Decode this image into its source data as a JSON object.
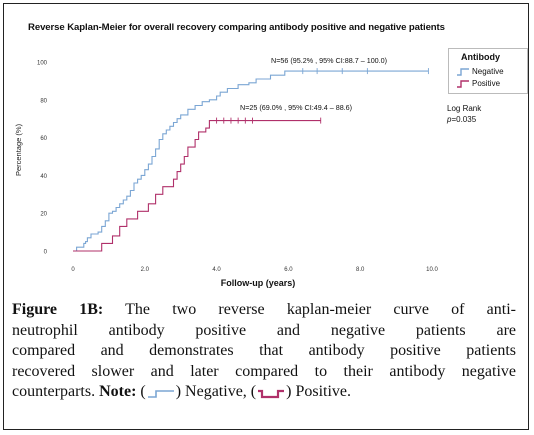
{
  "chart_data": {
    "type": "line",
    "title": "Reverse Kaplan-Meier for overall recovery comparing antibody positive and negative patients",
    "xlabel": "Follow-up (years)",
    "ylabel": "Percentage (%)",
    "xlim": [
      0,
      10
    ],
    "ylim": [
      0,
      100
    ],
    "x_ticks": [
      "0",
      "2.0",
      "4.0",
      "6.0",
      "8.0",
      "10.0"
    ],
    "y_ticks": [
      "0",
      "20",
      "40",
      "60",
      "80",
      "100"
    ],
    "grid": false,
    "legend": {
      "title": "Antibody",
      "placement": "right",
      "entries": [
        "Negative",
        "Positive"
      ]
    },
    "series": [
      {
        "name": "Negative",
        "color": "#7ba6d4",
        "annotation": "N=56 (95.2% , 95% CI:88.7 – 100.0)",
        "steps": [
          [
            0,
            0
          ],
          [
            0.1,
            2
          ],
          [
            0.3,
            4
          ],
          [
            0.35,
            5
          ],
          [
            0.4,
            7
          ],
          [
            0.5,
            9
          ],
          [
            0.7,
            10
          ],
          [
            0.8,
            13
          ],
          [
            0.9,
            16
          ],
          [
            1.0,
            20
          ],
          [
            1.1,
            21
          ],
          [
            1.2,
            23
          ],
          [
            1.3,
            25
          ],
          [
            1.4,
            27
          ],
          [
            1.5,
            29
          ],
          [
            1.6,
            32
          ],
          [
            1.7,
            36
          ],
          [
            1.8,
            38
          ],
          [
            1.9,
            40
          ],
          [
            2.0,
            43
          ],
          [
            2.1,
            46
          ],
          [
            2.2,
            50
          ],
          [
            2.3,
            54
          ],
          [
            2.4,
            59
          ],
          [
            2.5,
            62
          ],
          [
            2.6,
            64
          ],
          [
            2.7,
            66
          ],
          [
            2.8,
            68
          ],
          [
            2.9,
            70
          ],
          [
            3.0,
            72
          ],
          [
            3.2,
            75
          ],
          [
            3.4,
            77
          ],
          [
            3.6,
            79
          ],
          [
            3.8,
            80
          ],
          [
            4.0,
            82
          ],
          [
            4.1,
            84
          ],
          [
            4.3,
            86
          ],
          [
            4.6,
            88
          ],
          [
            4.9,
            89
          ],
          [
            5.1,
            91
          ],
          [
            5.5,
            93
          ],
          [
            5.9,
            95.2
          ],
          [
            9.9,
            95.2
          ]
        ],
        "censor_x": [
          6.4,
          6.8,
          7.5,
          8.2,
          9.9
        ]
      },
      {
        "name": "Positive",
        "color": "#b0306a",
        "annotation": "N=25 (69.0% , 95% CI:49.4 – 88.6)",
        "steps": [
          [
            0,
            0
          ],
          [
            0.8,
            4
          ],
          [
            1.1,
            8
          ],
          [
            1.3,
            13
          ],
          [
            1.5,
            17
          ],
          [
            1.8,
            21
          ],
          [
            2.1,
            25
          ],
          [
            2.3,
            30
          ],
          [
            2.5,
            34
          ],
          [
            2.8,
            38
          ],
          [
            2.9,
            42
          ],
          [
            3.0,
            46
          ],
          [
            3.1,
            50
          ],
          [
            3.2,
            55
          ],
          [
            3.4,
            59
          ],
          [
            3.5,
            63
          ],
          [
            3.7,
            65
          ],
          [
            3.8,
            69
          ],
          [
            6.9,
            69
          ]
        ],
        "censor_x": [
          4.0,
          4.2,
          4.4,
          4.6,
          4.8,
          5.0,
          6.9
        ]
      }
    ]
  },
  "logrank": {
    "label": "Log Rank",
    "p_symbol": "p",
    "p_value": "=0.035"
  },
  "caption": {
    "figure_label": "Figure 1B:",
    "line1_rest": "The two reverse kaplan-meier curve of anti-",
    "line2": "neutrophil antibody positive and negative patients are",
    "line3": "compared and demonstrates that antibody positive patients",
    "line4": "recovered slower and later compared to their antibody negative",
    "line5_start": "counterparts.",
    "note_label": "Note:",
    "negative_text": ") Negative, (",
    "positive_text": ") Positive.",
    "open_paren": "("
  }
}
